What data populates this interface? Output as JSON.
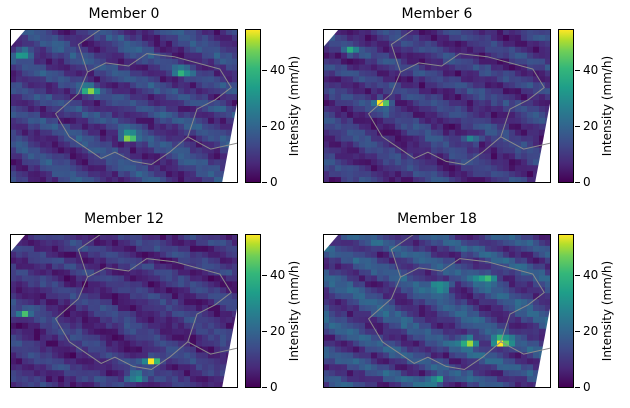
{
  "chart_data": [
    {
      "type": "heatmap",
      "title": "Member 0",
      "colorbar": {
        "label": "Intensity (mm/h)",
        "ticks": [
          0,
          20,
          40
        ],
        "range": [
          0,
          55
        ],
        "colormap": "viridis"
      },
      "hotspots": [
        {
          "x": 0.52,
          "y": 0.7,
          "v": 50
        },
        {
          "x": 0.35,
          "y": 0.4,
          "v": 38
        },
        {
          "x": 0.06,
          "y": 0.16,
          "v": 34
        },
        {
          "x": 0.75,
          "y": 0.28,
          "v": 25
        }
      ],
      "mean_intensity": 14
    },
    {
      "type": "heatmap",
      "title": "Member 6",
      "colorbar": {
        "label": "Intensity (mm/h)",
        "ticks": [
          0,
          20,
          40
        ],
        "range": [
          0,
          55
        ],
        "colormap": "viridis"
      },
      "hotspots": [
        {
          "x": 0.26,
          "y": 0.48,
          "v": 48
        },
        {
          "x": 0.65,
          "y": 0.72,
          "v": 30
        },
        {
          "x": 0.12,
          "y": 0.14,
          "v": 26
        }
      ],
      "mean_intensity": 12
    },
    {
      "type": "heatmap",
      "title": "Member 12",
      "colorbar": {
        "label": "Intensity (mm/h)",
        "ticks": [
          0,
          20,
          40
        ],
        "range": [
          0,
          55
        ],
        "colormap": "viridis"
      },
      "hotspots": [
        {
          "x": 0.62,
          "y": 0.82,
          "v": 55
        },
        {
          "x": 0.55,
          "y": 0.93,
          "v": 44
        },
        {
          "x": 0.06,
          "y": 0.52,
          "v": 32
        }
      ],
      "mean_intensity": 11
    },
    {
      "type": "heatmap",
      "title": "Member 18",
      "colorbar": {
        "label": "Intensity (mm/h)",
        "ticks": [
          0,
          20,
          40
        ],
        "range": [
          0,
          55
        ],
        "colormap": "viridis"
      },
      "hotspots": [
        {
          "x": 0.78,
          "y": 0.7,
          "v": 55
        },
        {
          "x": 0.64,
          "y": 0.7,
          "v": 50
        },
        {
          "x": 0.52,
          "y": 0.34,
          "v": 42
        },
        {
          "x": 0.72,
          "y": 0.28,
          "v": 40
        },
        {
          "x": 0.5,
          "y": 0.95,
          "v": 38
        }
      ],
      "mean_intensity": 16
    }
  ]
}
